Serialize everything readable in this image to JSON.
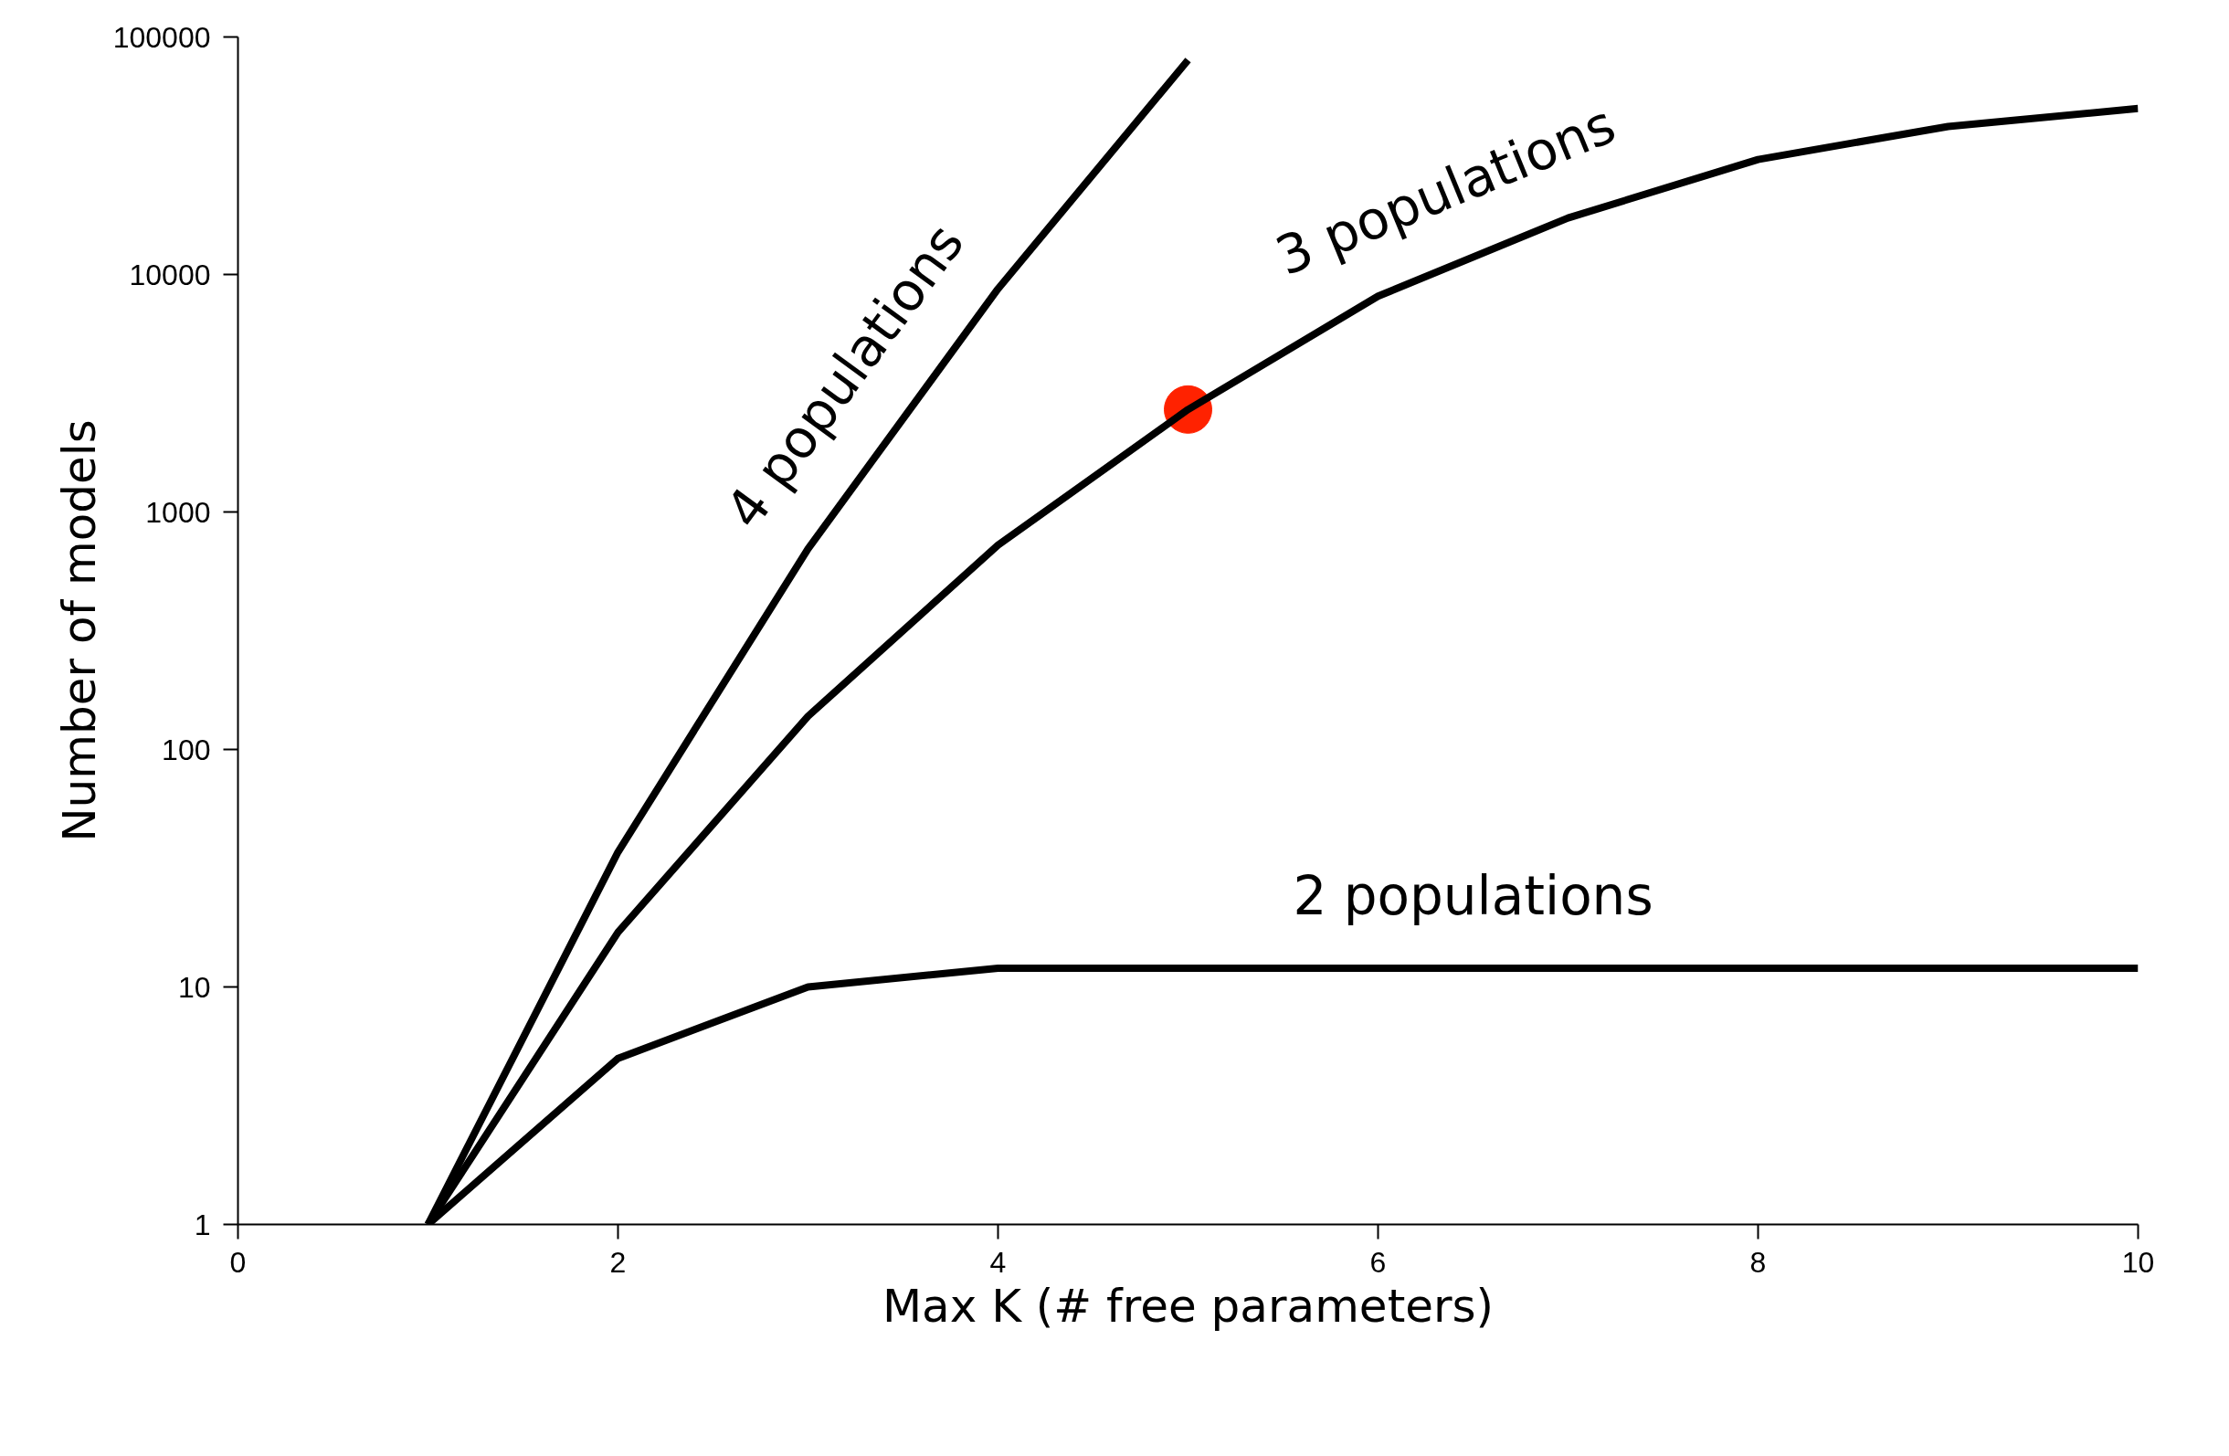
{
  "chart_data": {
    "type": "line",
    "xlabel": "Max K (# free parameters)",
    "ylabel": "Number of models",
    "log": "y",
    "xlim": [
      0,
      10
    ],
    "ylim": [
      1,
      100000
    ],
    "xticks": [
      0,
      2,
      4,
      6,
      8,
      10
    ],
    "yticks": [
      1,
      10,
      100,
      1000,
      10000,
      100000
    ],
    "grid": false,
    "series": [
      {
        "name": "4 populations",
        "color": "#000000",
        "x": [
          1,
          2,
          3,
          4,
          5
        ],
        "values": [
          1,
          37,
          700,
          8700,
          80000
        ]
      },
      {
        "name": "3 populations",
        "color": "#000000",
        "x": [
          1,
          2,
          3,
          4,
          5,
          6,
          7,
          8,
          9,
          10
        ],
        "values": [
          1,
          17,
          138,
          725,
          2700,
          8100,
          17300,
          30500,
          42000,
          50000
        ]
      },
      {
        "name": "2 populations",
        "color": "#000000",
        "x": [
          1,
          2,
          3,
          4,
          5,
          6,
          7,
          8,
          9,
          10
        ],
        "values": [
          1,
          5,
          10,
          12,
          12,
          12,
          12,
          12,
          12,
          12
        ]
      },
      {
        "type": "scatter",
        "color": "#ff2200",
        "x": [
          5
        ],
        "values": [
          2700
        ],
        "marker": "circle"
      }
    ]
  }
}
